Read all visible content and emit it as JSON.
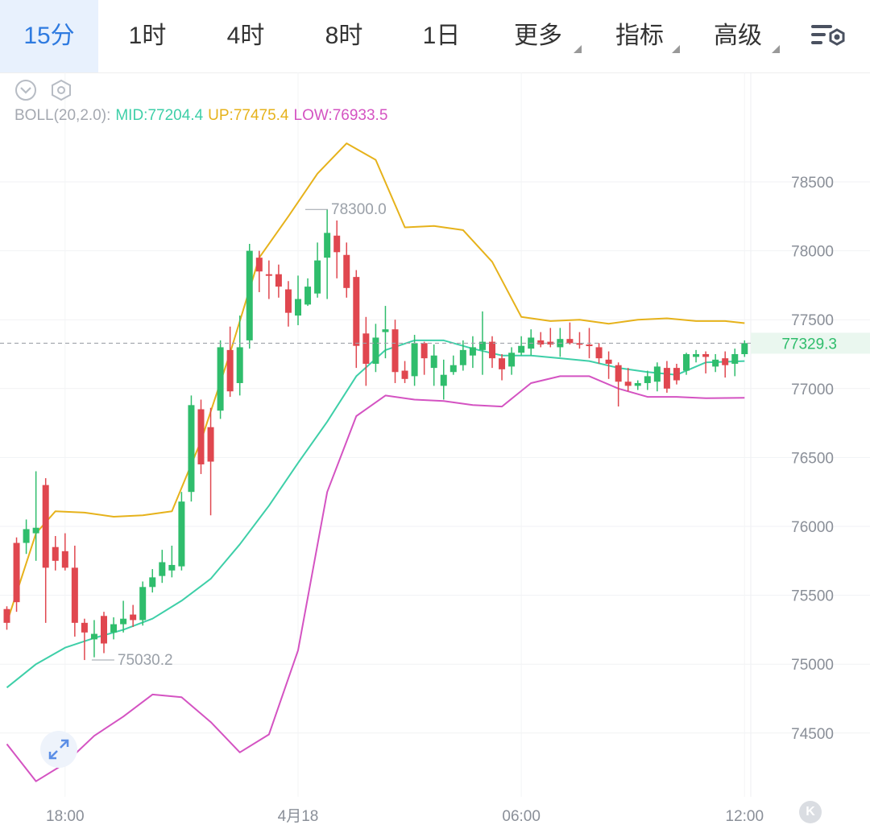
{
  "tabs": [
    {
      "label": "15分",
      "active": true,
      "dropdown": false
    },
    {
      "label": "1时",
      "active": false,
      "dropdown": false
    },
    {
      "label": "4时",
      "active": false,
      "dropdown": false
    },
    {
      "label": "8时",
      "active": false,
      "dropdown": false
    },
    {
      "label": "1日",
      "active": false,
      "dropdown": false
    },
    {
      "label": "更多",
      "active": false,
      "dropdown": true
    },
    {
      "label": "指标",
      "active": false,
      "dropdown": true
    },
    {
      "label": "高级",
      "active": false,
      "dropdown": true
    }
  ],
  "icons": {
    "settings": "chart-settings-icon",
    "collapse": "collapse-chevron-icon",
    "indicator_settings": "hexagon-settings-icon",
    "zoom": "expand-arrows-icon",
    "kline": "k-line-icon"
  },
  "indicator": {
    "name": "BOLL(20,2.0):",
    "mid": "MID:77204.4",
    "up": "UP:77475.4",
    "low": "LOW:76933.5"
  },
  "colors": {
    "up": "#2fbd6c",
    "down": "#e0474f",
    "mid_line": "#3ecfa8",
    "upper_band": "#e6b21b",
    "lower_band": "#d453c2",
    "active_tab": "#2f7be0",
    "last_price_label": "#2fbd6c"
  },
  "k_button_label": "K",
  "chart_data": {
    "type": "candlestick",
    "interval": "15分",
    "ylim": [
      74100,
      78900
    ],
    "y_ticks": [
      "78500",
      "78000",
      "77500",
      "77000",
      "76500",
      "76000",
      "75500",
      "75000",
      "74500"
    ],
    "x_tick_labels": [
      "18:00",
      "4月18",
      "06:00",
      "12:00"
    ],
    "x_tick_index": [
      6,
      30,
      53,
      76
    ],
    "last_price": "77329.3",
    "annotations": [
      {
        "text": "78300.0",
        "index": 30,
        "price": 78300.0
      },
      {
        "text": "75030.2",
        "index": 8,
        "price": 75030.2
      }
    ],
    "candles": [
      [
        75400,
        75300,
        75250,
        75420
      ],
      [
        75880,
        75450,
        75380,
        75920
      ],
      [
        75880,
        75980,
        75800,
        76050
      ],
      [
        75950,
        75990,
        75750,
        76400
      ],
      [
        76300,
        75700,
        75300,
        76350
      ],
      [
        75850,
        75750,
        75680,
        75930
      ],
      [
        75820,
        75700,
        75680,
        75950
      ],
      [
        75700,
        75300,
        75200,
        75860
      ],
      [
        75300,
        75230,
        75030,
        75330
      ],
      [
        75180,
        75220,
        75050,
        75320
      ],
      [
        75350,
        75150,
        75080,
        75380
      ],
      [
        75230,
        75290,
        75180,
        75340
      ],
      [
        75290,
        75330,
        75230,
        75460
      ],
      [
        75360,
        75320,
        75270,
        75430
      ],
      [
        75320,
        75560,
        75280,
        75600
      ],
      [
        75560,
        75630,
        75520,
        75690
      ],
      [
        75640,
        75740,
        75590,
        75830
      ],
      [
        75680,
        75720,
        75630,
        75860
      ],
      [
        75710,
        76180,
        75680,
        76250
      ],
      [
        76250,
        76880,
        76180,
        76950
      ],
      [
        76850,
        76450,
        76380,
        76920
      ],
      [
        76720,
        76470,
        76080,
        76860
      ],
      [
        76840,
        77300,
        76780,
        77350
      ],
      [
        77280,
        76980,
        76940,
        77450
      ],
      [
        77040,
        77300,
        76950,
        77530
      ],
      [
        77350,
        78000,
        77290,
        78050
      ],
      [
        77950,
        77850,
        77700,
        78000
      ],
      [
        77830,
        77820,
        77650,
        77930
      ],
      [
        77830,
        77740,
        77660,
        77900
      ],
      [
        77720,
        77550,
        77450,
        77780
      ],
      [
        77530,
        77650,
        77460,
        77820
      ],
      [
        77610,
        77740,
        77600,
        77800
      ],
      [
        77690,
        77930,
        77660,
        78060
      ],
      [
        77950,
        78130,
        77650,
        78300
      ],
      [
        78110,
        77990,
        77800,
        78220
      ],
      [
        77970,
        77730,
        77660,
        78060
      ],
      [
        77810,
        77310,
        77150,
        77860
      ],
      [
        77400,
        77180,
        77020,
        77520
      ],
      [
        77180,
        77370,
        77120,
        77470
      ],
      [
        77410,
        77430,
        77220,
        77600
      ],
      [
        77430,
        77120,
        77040,
        77500
      ],
      [
        77130,
        77070,
        77040,
        77200
      ],
      [
        77090,
        77330,
        77020,
        77390
      ],
      [
        77330,
        77220,
        77100,
        77340
      ],
      [
        77150,
        77240,
        77020,
        77320
      ],
      [
        77020,
        77100,
        76920,
        77210
      ],
      [
        77120,
        77170,
        77100,
        77240
      ],
      [
        77170,
        77280,
        77130,
        77350
      ],
      [
        77240,
        77300,
        77150,
        77380
      ],
      [
        77280,
        77340,
        77100,
        77560
      ],
      [
        77340,
        77220,
        77150,
        77380
      ],
      [
        77220,
        77140,
        77060,
        77250
      ],
      [
        77160,
        77260,
        77100,
        77300
      ],
      [
        77260,
        77310,
        77240,
        77380
      ],
      [
        77290,
        77370,
        77240,
        77430
      ],
      [
        77350,
        77320,
        77300,
        77410
      ],
      [
        77340,
        77320,
        77300,
        77440
      ],
      [
        77300,
        77360,
        77230,
        77440
      ],
      [
        77360,
        77330,
        77320,
        77480
      ],
      [
        77330,
        77320,
        77290,
        77410
      ],
      [
        77320,
        77310,
        77220,
        77440
      ],
      [
        77300,
        77220,
        77180,
        77330
      ],
      [
        77210,
        77180,
        77070,
        77270
      ],
      [
        77170,
        77050,
        76870,
        77190
      ],
      [
        77050,
        77020,
        76980,
        77150
      ],
      [
        77020,
        77040,
        76990,
        77060
      ],
      [
        77040,
        77090,
        76990,
        77130
      ],
      [
        77050,
        77160,
        76980,
        77190
      ],
      [
        77150,
        77000,
        76970,
        77200
      ],
      [
        77150,
        77060,
        77030,
        77180
      ],
      [
        77130,
        77250,
        77100,
        77260
      ],
      [
        77230,
        77250,
        77190,
        77280
      ],
      [
        77250,
        77230,
        77110,
        77270
      ],
      [
        77160,
        77210,
        77120,
        77250
      ],
      [
        77220,
        77170,
        77080,
        77270
      ],
      [
        77180,
        77250,
        77090,
        77290
      ],
      [
        77250,
        77330,
        77230,
        77350
      ]
    ],
    "series": [
      {
        "name": "MID",
        "x_index": [
          0,
          3,
          6,
          9,
          12,
          15,
          18,
          21,
          24,
          27,
          30,
          33,
          36,
          39,
          42,
          45,
          48,
          51,
          54,
          57,
          60,
          63,
          66,
          69,
          72,
          76
        ],
        "values": [
          74830,
          75000,
          75120,
          75190,
          75250,
          75330,
          75460,
          75620,
          75870,
          76150,
          76460,
          76760,
          77090,
          77280,
          77350,
          77350,
          77290,
          77240,
          77240,
          77220,
          77200,
          77150,
          77120,
          77100,
          77190,
          77200
        ]
      },
      {
        "name": "UP",
        "x_index": [
          0,
          3,
          5,
          8,
          11,
          14,
          17,
          20,
          23,
          26,
          29,
          32,
          35,
          38,
          41,
          44,
          47,
          50,
          53,
          56,
          59,
          62,
          65,
          68,
          71,
          74,
          76
        ],
        "values": [
          75300,
          75950,
          76110,
          76100,
          76070,
          76080,
          76110,
          76620,
          77260,
          77950,
          78250,
          78560,
          78780,
          78660,
          78170,
          78180,
          78150,
          77920,
          77520,
          77490,
          77500,
          77470,
          77500,
          77510,
          77490,
          77490,
          77475
        ]
      },
      {
        "name": "LOW",
        "x_index": [
          0,
          3,
          6,
          9,
          12,
          15,
          18,
          21,
          24,
          27,
          30,
          33,
          36,
          39,
          42,
          45,
          48,
          51,
          54,
          57,
          60,
          63,
          66,
          69,
          72,
          76
        ],
        "values": [
          74420,
          74150,
          74280,
          74480,
          74620,
          74780,
          74760,
          74580,
          74360,
          74490,
          75100,
          76250,
          76800,
          76950,
          76920,
          76910,
          76880,
          76870,
          77040,
          77090,
          77090,
          77000,
          76940,
          76940,
          76930,
          76933
        ]
      }
    ]
  }
}
